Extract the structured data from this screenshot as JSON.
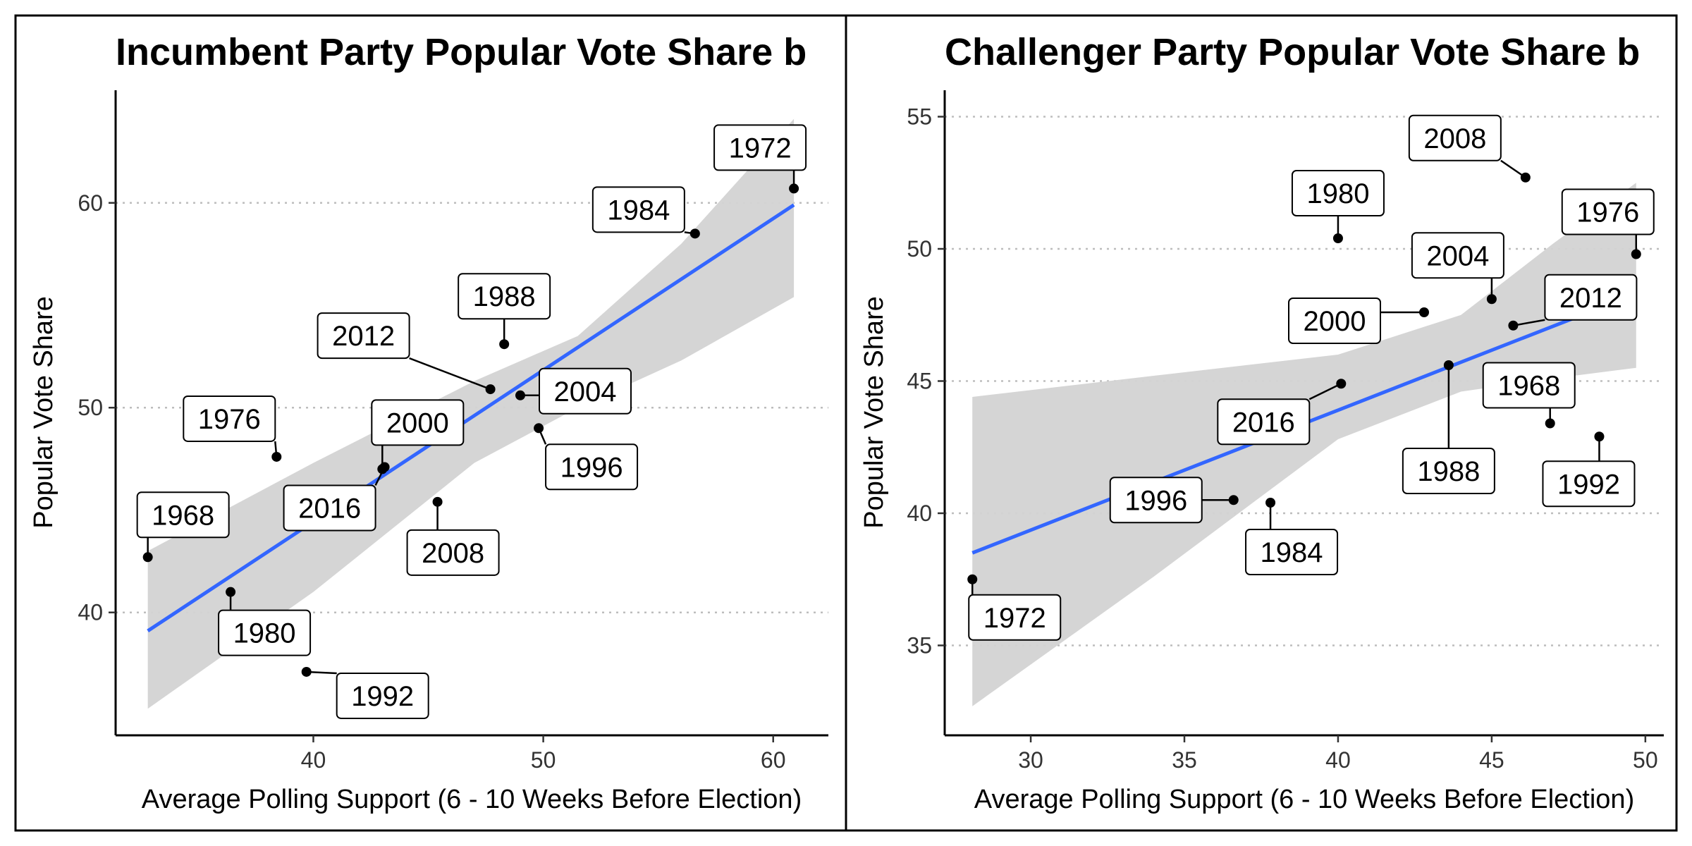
{
  "chart_data": [
    {
      "type": "scatter",
      "title": "Incumbent Party Popular Vote Share b",
      "xlabel": "Average Polling Support (6 - 10 Weeks Before Election)",
      "ylabel": "Popular Vote Share",
      "xlim": [
        31.4,
        62.4
      ],
      "ylim": [
        34.0,
        65.5
      ],
      "xticks": [
        40,
        50,
        60
      ],
      "yticks": [
        40,
        50,
        60
      ],
      "grid": "horizontal-dotted",
      "colors": {
        "points": "#000000",
        "fit": "#3366ff",
        "band": "#d3d3d3"
      },
      "fit": {
        "x": [
          32.8,
          60.9
        ],
        "y": [
          39.1,
          59.9
        ]
      },
      "band": {
        "x": [
          32.8,
          40,
          47,
          51.5,
          56,
          60.9
        ],
        "upper": [
          43.0,
          47.3,
          51.3,
          53.5,
          58.0,
          64.1
        ],
        "lower": [
          35.3,
          41.0,
          47.3,
          50.0,
          52.3,
          55.4
        ]
      },
      "points": [
        {
          "year": "1968",
          "x": 32.8,
          "y": 42.7
        },
        {
          "year": "1972",
          "x": 60.9,
          "y": 60.7
        },
        {
          "year": "1976",
          "x": 38.4,
          "y": 47.6
        },
        {
          "year": "1980",
          "x": 36.4,
          "y": 41.0
        },
        {
          "year": "1984",
          "x": 56.6,
          "y": 58.5
        },
        {
          "year": "1988",
          "x": 48.3,
          "y": 53.1
        },
        {
          "year": "1992",
          "x": 39.7,
          "y": 37.1
        },
        {
          "year": "1996",
          "x": 49.8,
          "y": 49.0
        },
        {
          "year": "2000",
          "x": 43.0,
          "y": 47.0
        },
        {
          "year": "2004",
          "x": 49.0,
          "y": 50.6
        },
        {
          "year": "2008",
          "x": 45.4,
          "y": 45.4
        },
        {
          "year": "2012",
          "x": 47.7,
          "y": 50.9
        },
        {
          "year": "2016",
          "x": 43.1,
          "y": 47.1
        }
      ]
    },
    {
      "type": "scatter",
      "title": "Challenger Party Popular Vote Share b",
      "xlabel": "Average Polling Support (6 - 10 Weeks Before Election)",
      "ylabel": "Popular Vote Share",
      "xlim": [
        27.2,
        50.6
      ],
      "ylim": [
        31.6,
        56.0
      ],
      "xticks": [
        30,
        35,
        40,
        45,
        50
      ],
      "yticks": [
        35,
        40,
        45,
        50,
        55
      ],
      "grid": "horizontal-dotted",
      "colors": {
        "points": "#000000",
        "fit": "#3366ff",
        "band": "#d3d3d3"
      },
      "fit": {
        "x": [
          28.1,
          49.7
        ],
        "y": [
          38.5,
          48.3
        ]
      },
      "band": {
        "x": [
          28.1,
          34,
          40,
          44,
          47,
          49.7
        ],
        "upper": [
          44.4,
          45.2,
          46.0,
          47.5,
          50.2,
          52.5
        ],
        "lower": [
          32.7,
          37.6,
          42.8,
          44.6,
          45.1,
          45.5
        ]
      },
      "points": [
        {
          "year": "1968",
          "x": 46.9,
          "y": 43.4
        },
        {
          "year": "1972",
          "x": 28.1,
          "y": 37.5
        },
        {
          "year": "1976",
          "x": 49.7,
          "y": 49.8
        },
        {
          "year": "1980",
          "x": 40.0,
          "y": 50.4
        },
        {
          "year": "1984",
          "x": 37.8,
          "y": 40.4
        },
        {
          "year": "1988",
          "x": 43.6,
          "y": 45.6
        },
        {
          "year": "1992",
          "x": 48.5,
          "y": 42.9
        },
        {
          "year": "1996",
          "x": 36.6,
          "y": 40.5
        },
        {
          "year": "2000",
          "x": 42.8,
          "y": 47.6
        },
        {
          "year": "2004",
          "x": 45.0,
          "y": 48.1
        },
        {
          "year": "2008",
          "x": 46.1,
          "y": 52.7
        },
        {
          "year": "2012",
          "x": 45.7,
          "y": 47.1
        },
        {
          "year": "2016",
          "x": 40.1,
          "y": 44.9
        }
      ]
    }
  ]
}
